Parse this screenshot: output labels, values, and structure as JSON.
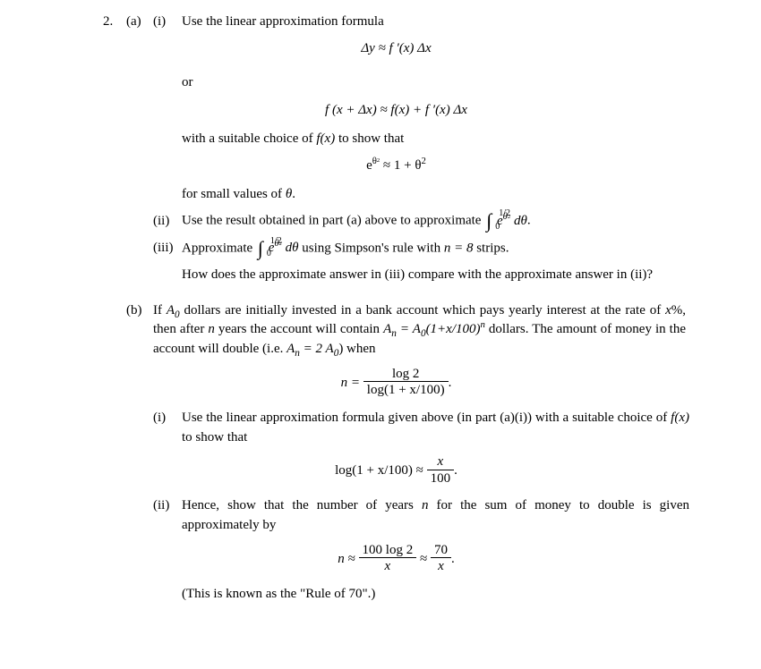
{
  "problem_number": "2.",
  "partA": {
    "label": "(a)",
    "i": {
      "label": "(i)",
      "text1": "Use the linear approximation formula",
      "eq1": "Δy ≈ f ′(x) Δx",
      "or": "or",
      "eq2": "f (x + Δx) ≈ f(x) + f ′(x) Δx",
      "text2_a": "with a suitable choice of ",
      "text2_b": " to show that",
      "fx": "f(x)",
      "eq3_html": "e<sup>θ<span class=\"supsup\">2</span></sup> ≈ 1 + θ<sup>2</sup>",
      "text3_a": "for small values of ",
      "text3_b": ".",
      "theta": "θ"
    },
    "ii": {
      "label": "(ii)",
      "text_a": "Use the result obtained in part (a) above to approximate ",
      "int_upper": "1/2",
      "int_lower": "0",
      "integrand_html": "e<sup>θ<span class=\"supsup\">2</span></sup> dθ",
      "text_b": "."
    },
    "iii": {
      "label": "(iii)",
      "text_a": "Approximate ",
      "int_upper": "1/2",
      "int_lower": "0",
      "integrand_html": "e<sup>θ<span class=\"supsup\">2</span></sup> dθ",
      "text_b": " using Simpson's rule with ",
      "n_eq": "n = 8",
      "text_c": " strips.",
      "compare": "How does the approximate answer in (iii) compare with the approximate answer in (ii)?"
    }
  },
  "partB": {
    "label": "(b)",
    "intro_a": "If ",
    "A0": "A",
    "intro_b": " dollars are initially invested in a bank account which pays yearly interest at the rate of ",
    "xv": "x",
    "intro_c": "%, then after ",
    "nv": "n",
    "intro_d": " years the account will contain  ",
    "An_eq_html": "A<sub>n</sub> = A<sub>0</sub>(1+x/100)<sup>n</sup>",
    "intro_e": " dollars. The amount of money in the account will double (i.e. ",
    "double_eq_html": "A<sub>n</sub> = 2 A<sub>0</sub>",
    "intro_f": ") when",
    "eqN_lhs": "n =",
    "eqN_num": "log 2",
    "eqN_den": "log(1 + x/100)",
    "eqN_tail": ".",
    "i": {
      "label": "(i)",
      "text_a": "Use the linear approximation formula given above (in part (a)(i)) with a suitable choice of ",
      "fx": "f(x)",
      "text_b": " to show that",
      "eq_lhs": "log(1 + x/100) ≈",
      "eq_num": "x",
      "eq_den": "100",
      "eq_tail": "."
    },
    "ii": {
      "label": "(ii)",
      "text_a": "Hence, show that the number of years ",
      "nv": "n",
      "text_b": " for the sum of money to double is given approximately by",
      "eq_lhs": "n ≈",
      "eq_num1": "100 log 2",
      "eq_den1": "x",
      "approx": "≈",
      "eq_num2": "70",
      "eq_den2": "x",
      "eq_tail": ".",
      "note": "(This is known as the \"Rule of 70\".)"
    }
  }
}
